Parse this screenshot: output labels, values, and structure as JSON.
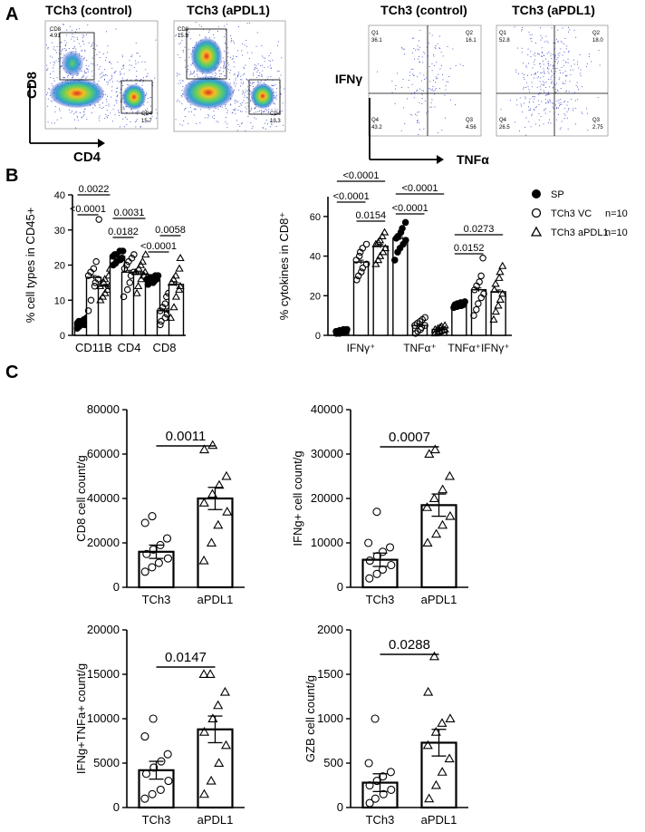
{
  "panel_labels": [
    "A",
    "B",
    "C"
  ],
  "chart_data": [
    {
      "id": "A-flow",
      "type": "scatter",
      "description_kind": "flow-cytometry density plots",
      "x_axis": "CD4",
      "y_axis": "CD8",
      "plots": [
        {
          "title": "TCh3 (control)",
          "gates": [
            {
              "name": "CD8",
              "value": "4.91"
            },
            {
              "name": "CD4",
              "value": "15.7"
            }
          ]
        },
        {
          "title": "TCh3 (aPDL1)",
          "gates": [
            {
              "name": "CD8",
              "value": "15.9"
            },
            {
              "name": "CD4",
              "value": "13.3"
            }
          ]
        }
      ]
    },
    {
      "id": "A-quadrant",
      "type": "scatter",
      "description_kind": "flow-cytometry quadrant plots",
      "x_axis": "TNFα",
      "y_axis": "IFNγ",
      "plots": [
        {
          "title": "TCh3 (control)",
          "quadrants": [
            {
              "name": "Q1",
              "value": "36.1"
            },
            {
              "name": "Q2",
              "value": "16.1"
            },
            {
              "name": "Q4",
              "value": "43.2"
            },
            {
              "name": "Q3",
              "value": "4.56"
            }
          ]
        },
        {
          "title": "TCh3 (aPDL1)",
          "quadrants": [
            {
              "name": "Q1",
              "value": "52.8"
            },
            {
              "name": "Q2",
              "value": "18.0"
            },
            {
              "name": "Q4",
              "value": "26.5"
            },
            {
              "name": "Q3",
              "value": "2.75"
            }
          ]
        }
      ]
    },
    {
      "id": "B1",
      "type": "bar",
      "ylabel": "% cell types in CD45+",
      "yticks": [
        "0",
        "10",
        "20",
        "30",
        "40"
      ],
      "ylim": [
        0,
        40
      ],
      "categories": [
        "CD11B",
        "CD4",
        "CD8"
      ],
      "series": [
        {
          "name": "SP",
          "marker": "filled-circle",
          "values": [
            3.5,
            22.5,
            16
          ],
          "points": [
            [
              2,
              2.5,
              3,
              3,
              3.5,
              3.5,
              4,
              4,
              4.5,
              5
            ],
            [
              20,
              20.5,
              21,
              21.5,
              22,
              22.5,
              23,
              23,
              24,
              24
            ],
            [
              14.5,
              15,
              15,
              15.5,
              16,
              16,
              16.5,
              16.5,
              17,
              17
            ]
          ]
        },
        {
          "name": "TCh3 VC",
          "marker": "open-circle",
          "values": [
            16.5,
            18,
            7
          ],
          "points": [
            [
              7,
              10,
              14,
              15,
              16,
              17,
              18,
              19,
              21,
              33
            ],
            [
              11,
              13,
              15,
              17,
              18,
              19,
              20,
              21,
              22,
              23
            ],
            [
              3,
              4,
              5,
              6,
              7,
              7,
              8,
              9,
              11,
              12
            ]
          ]
        },
        {
          "name": "TCh3 aPDL1",
          "marker": "open-triangle",
          "values": [
            14,
            17.5,
            14.5
          ],
          "points": [
            [
              10,
              11,
              12,
              13,
              14,
              14,
              15,
              16,
              17,
              19
            ],
            [
              12,
              14,
              16,
              17,
              18,
              18,
              19,
              20,
              21,
              23
            ],
            [
              5,
              8,
              11,
              13,
              14,
              15,
              16,
              17,
              19,
              22
            ]
          ]
        }
      ],
      "annotations": [
        {
          "text": "0.0022",
          "from": [
            0,
            0
          ],
          "to": [
            0,
            2
          ]
        },
        {
          "text": "<0.0001",
          "from": [
            0,
            0
          ],
          "to": [
            0,
            1
          ]
        },
        {
          "text": "0.0031",
          "from": [
            1,
            0
          ],
          "to": [
            1,
            2
          ]
        },
        {
          "text": "0.0182",
          "from": [
            1,
            0
          ],
          "to": [
            1,
            1
          ]
        },
        {
          "text": "0.0058",
          "from": [
            2,
            1
          ],
          "to": [
            2,
            2
          ]
        },
        {
          "text": "<0.0001",
          "from": [
            2,
            0
          ],
          "to": [
            2,
            1
          ]
        }
      ]
    },
    {
      "id": "B2",
      "type": "bar",
      "ylabel": "% cytokines in CD8⁺",
      "yticks": [
        "0",
        "20",
        "40",
        "60"
      ],
      "ylim": [
        0,
        70
      ],
      "categories": [
        "IFNγ⁺",
        "TNFα⁺",
        "TNFα⁺IFNγ⁺"
      ],
      "series": [
        {
          "name": "SP",
          "marker": "filled-circle",
          "values": [
            2,
            49,
            15.5
          ],
          "points": [
            [
              1,
              1,
              1.5,
              1.5,
              2,
              2,
              2.5,
              2.5,
              3,
              3
            ],
            [
              38,
              42,
              44,
              46,
              48,
              49,
              50,
              52,
              54,
              57
            ],
            [
              14,
              14.5,
              15,
              15,
              15.5,
              15.5,
              16,
              16,
              16.5,
              17
            ]
          ]
        },
        {
          "name": "TCh3 VC",
          "marker": "open-circle",
          "values": [
            37,
            5,
            23
          ],
          "points": [
            [
              28,
              30,
              32,
              34,
              36,
              38,
              40,
              42,
              44,
              46
            ],
            [
              1,
              2,
              3,
              4,
              5,
              5,
              6,
              7,
              8,
              9
            ],
            [
              10,
              13,
              16,
              19,
              21,
              23,
              25,
              27,
              30,
              39
            ]
          ]
        },
        {
          "name": "TCh3 aPDL1",
          "marker": "open-triangle",
          "values": [
            45,
            3,
            22
          ],
          "points": [
            [
              36,
              38,
              40,
              42,
              44,
              46,
              47,
              48,
              50,
              52
            ],
            [
              1,
              1.5,
              2,
              2.5,
              3,
              3,
              3.5,
              4,
              4.5,
              5
            ],
            [
              8,
              12,
              15,
              18,
              21,
              23,
              26,
              29,
              32,
              35
            ]
          ]
        }
      ],
      "annotations": [
        {
          "text": "<0.0001",
          "from": [
            0,
            0
          ],
          "to": [
            0,
            2
          ]
        },
        {
          "text": "<0.0001",
          "from": [
            0,
            0
          ],
          "to": [
            0,
            1
          ]
        },
        {
          "text": "0.0154",
          "from": [
            0,
            1
          ],
          "to": [
            0,
            2
          ]
        },
        {
          "text": "<0.0001",
          "from": [
            1,
            0
          ],
          "to": [
            1,
            2
          ]
        },
        {
          "text": "<0.0001",
          "from": [
            1,
            0
          ],
          "to": [
            1,
            1
          ]
        },
        {
          "text": "0.0273",
          "from": [
            2,
            0
          ],
          "to": [
            2,
            2
          ]
        },
        {
          "text": "0.0152",
          "from": [
            2,
            0
          ],
          "to": [
            2,
            1
          ]
        }
      ]
    },
    {
      "id": "B-legend",
      "type": "legend",
      "entries": [
        {
          "marker": "filled-circle",
          "label": "SP",
          "note": ""
        },
        {
          "marker": "open-circle",
          "label": "TCh3 VC",
          "note": "n=10"
        },
        {
          "marker": "open-triangle",
          "label": "TCh3 aPDL1",
          "note": "n=10"
        }
      ]
    },
    {
      "id": "C1",
      "type": "bar",
      "ylabel": "CD8 cell count/g",
      "yticks": [
        "0",
        "20000",
        "40000",
        "60000",
        "80000"
      ],
      "ylim": [
        0,
        80000
      ],
      "categories": [
        "TCh3",
        "aPDL1"
      ],
      "values": [
        16000,
        40000
      ],
      "sem": [
        3000,
        5000
      ],
      "markers": [
        "open-circle",
        "open-triangle"
      ],
      "points": [
        [
          7000,
          9000,
          11000,
          13000,
          15000,
          17000,
          19000,
          22000,
          29000,
          32000
        ],
        [
          12000,
          20000,
          28000,
          34000,
          38000,
          42000,
          46000,
          50000,
          62000,
          64000
        ]
      ],
      "pvalue": "0.0011"
    },
    {
      "id": "C2",
      "type": "bar",
      "ylabel": "IFNg+ cell count/g",
      "yticks": [
        "0",
        "10000",
        "20000",
        "30000",
        "40000"
      ],
      "ylim": [
        0,
        40000
      ],
      "categories": [
        "TCh3",
        "aPDL1"
      ],
      "values": [
        6200,
        18500
      ],
      "sem": [
        1500,
        2500
      ],
      "markers": [
        "open-circle",
        "open-triangle"
      ],
      "points": [
        [
          2000,
          3000,
          4000,
          5000,
          6000,
          7000,
          8000,
          9000,
          10000,
          17000
        ],
        [
          10000,
          12000,
          14000,
          16000,
          18000,
          20000,
          22000,
          25000,
          30000,
          31000
        ]
      ],
      "pvalue": "0.0007"
    },
    {
      "id": "C3",
      "type": "bar",
      "ylabel": "IFNg+TNFa+ count/g",
      "yticks": [
        "0",
        "5000",
        "10000",
        "15000",
        "20000"
      ],
      "ylim": [
        0,
        20000
      ],
      "categories": [
        "TCh3",
        "aPDL1"
      ],
      "values": [
        4200,
        8800
      ],
      "sem": [
        1000,
        1500
      ],
      "markers": [
        "open-circle",
        "open-triangle"
      ],
      "points": [
        [
          1000,
          1500,
          2000,
          3000,
          3800,
          4500,
          5200,
          6000,
          8000,
          10000
        ],
        [
          1500,
          3000,
          5000,
          7000,
          8500,
          10000,
          11500,
          13000,
          15000,
          15000
        ]
      ],
      "pvalue": "0.0147"
    },
    {
      "id": "C4",
      "type": "bar",
      "ylabel": "GZB cell count/g",
      "yticks": [
        "0",
        "500",
        "1000",
        "1500",
        "2000"
      ],
      "ylim": [
        0,
        2000
      ],
      "categories": [
        "TCh3",
        "aPDL1"
      ],
      "values": [
        280,
        730
      ],
      "sem": [
        100,
        150
      ],
      "markers": [
        "open-circle",
        "open-triangle"
      ],
      "points": [
        [
          50,
          100,
          150,
          200,
          250,
          300,
          350,
          400,
          500,
          1000
        ],
        [
          100,
          250,
          400,
          550,
          700,
          850,
          950,
          1000,
          1300,
          1700
        ]
      ],
      "pvalue": "0.0288"
    }
  ]
}
